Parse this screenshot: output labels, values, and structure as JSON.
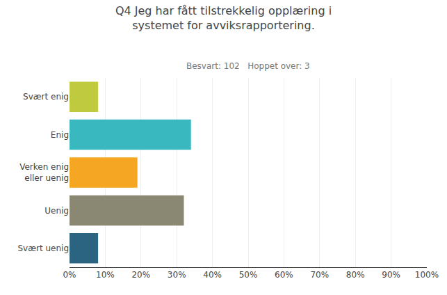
{
  "chart_data": {
    "type": "bar",
    "orientation": "horizontal",
    "title": "Q4 Jeg har fått tilstrekkelig opplæring i\nsystemet for avviksrapportering.",
    "subtitle": "Besvart: 102   Hoppet over: 3",
    "categories": [
      "Svært enig",
      "Enig",
      "Verken enig\neller uenig",
      "Uenig",
      "Svært uenig"
    ],
    "values": [
      8,
      34,
      19,
      32,
      8
    ],
    "colors": [
      "#bfca3e",
      "#3ab8c0",
      "#f5a623",
      "#8a8772",
      "#2a6480"
    ],
    "xlim": [
      0,
      100
    ],
    "xticks": [
      {
        "value": 0,
        "label": "0%"
      },
      {
        "value": 10,
        "label": "10%"
      },
      {
        "value": 20,
        "label": "20%"
      },
      {
        "value": 30,
        "label": "30%"
      },
      {
        "value": 40,
        "label": "40%"
      },
      {
        "value": 50,
        "label": "50%"
      },
      {
        "value": 60,
        "label": "60%"
      },
      {
        "value": 70,
        "label": "70%"
      },
      {
        "value": 80,
        "label": "80%"
      },
      {
        "value": 90,
        "label": "90%"
      },
      {
        "value": 100,
        "label": "100%"
      }
    ],
    "grid": true
  }
}
